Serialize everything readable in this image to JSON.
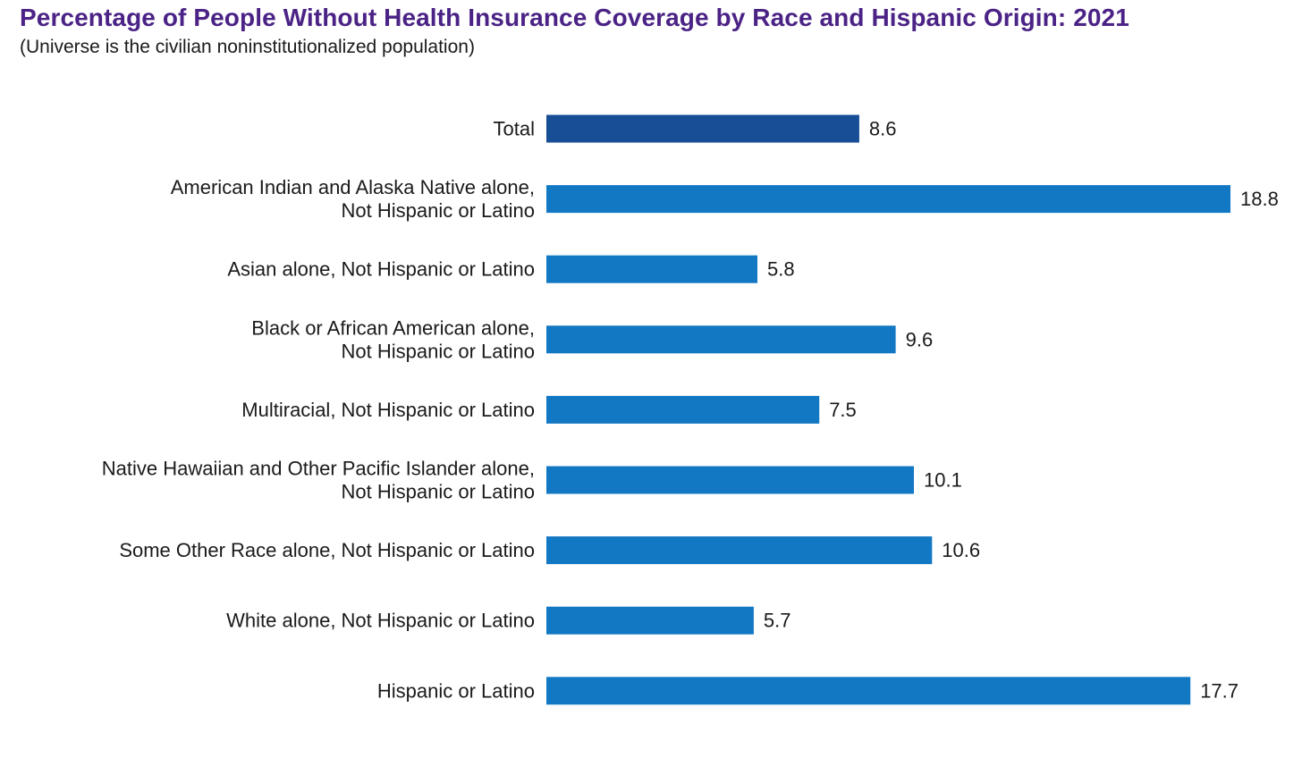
{
  "chart_data": {
    "type": "bar",
    "orientation": "horizontal",
    "title": "Percentage of People Without Health Insurance Coverage by Race and Hispanic Origin: 2021",
    "subtitle": "(Universe is the civilian noninstitutionalized population)",
    "categories": [
      [
        "Total"
      ],
      [
        "American Indian and Alaska Native alone,",
        "Not Hispanic or Latino"
      ],
      [
        "Asian alone, Not Hispanic or Latino"
      ],
      [
        "Black or African American alone,",
        "Not Hispanic or Latino"
      ],
      [
        "Multiracial, Not Hispanic or Latino"
      ],
      [
        "Native Hawaiian and Other Pacific Islander alone,",
        "Not Hispanic or Latino"
      ],
      [
        "Some Other Race alone, Not Hispanic or Latino"
      ],
      [
        "White alone, Not Hispanic or Latino"
      ],
      [
        "Hispanic or Latino"
      ]
    ],
    "values": [
      8.6,
      18.8,
      5.8,
      9.6,
      7.5,
      10.1,
      10.6,
      5.7,
      17.7
    ],
    "value_labels": [
      "8.6",
      "18.8",
      "5.8",
      "9.6",
      "7.5",
      "10.1",
      "10.6",
      "5.7",
      "17.7"
    ],
    "bar_colors": [
      "#174e96",
      "#1278c4",
      "#1278c4",
      "#1278c4",
      "#1278c4",
      "#1278c4",
      "#1278c4",
      "#1278c4",
      "#1278c4"
    ],
    "xlim": [
      0,
      18.8
    ],
    "grid": false,
    "legend": "none"
  }
}
